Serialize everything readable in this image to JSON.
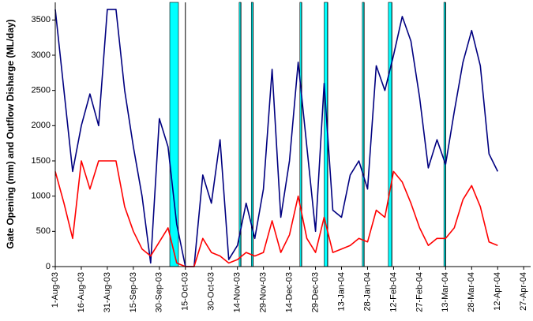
{
  "chart_data": {
    "type": "line",
    "ylabel": "Gate Opening (mm) and Outflow Disharge (ML/day)",
    "x": [
      "2003-08-01",
      "2003-08-06",
      "2003-08-11",
      "2003-08-16",
      "2003-08-21",
      "2003-08-26",
      "2003-08-31",
      "2003-09-05",
      "2003-09-10",
      "2003-09-15",
      "2003-09-20",
      "2003-09-25",
      "2003-09-30",
      "2003-10-05",
      "2003-10-10",
      "2003-10-15",
      "2003-10-20",
      "2003-10-25",
      "2003-10-30",
      "2003-11-04",
      "2003-11-09",
      "2003-11-14",
      "2003-11-19",
      "2003-11-24",
      "2003-11-29",
      "2003-12-04",
      "2003-12-09",
      "2003-12-14",
      "2003-12-19",
      "2003-12-24",
      "2003-12-29",
      "2004-01-03",
      "2004-01-08",
      "2004-01-13",
      "2004-01-18",
      "2004-01-23",
      "2004-01-28",
      "2004-02-02",
      "2004-02-07",
      "2004-02-12",
      "2004-02-17",
      "2004-02-22",
      "2004-02-27",
      "2004-03-03",
      "2004-03-08",
      "2004-03-13",
      "2004-03-18",
      "2004-03-23",
      "2004-03-28",
      "2004-04-02",
      "2004-04-07",
      "2004-04-12"
    ],
    "series": [
      {
        "color": "#000080",
        "values": [
          3650,
          2500,
          1350,
          2000,
          2450,
          2000,
          3650,
          3650,
          2500,
          1700,
          1000,
          50,
          2100,
          1700,
          600,
          0,
          0,
          1300,
          900,
          1800,
          100,
          300,
          900,
          400,
          1100,
          2800,
          700,
          1500,
          2900,
          1700,
          500,
          2600,
          800,
          700,
          1300,
          1500,
          1100,
          2850,
          2500,
          3000,
          3550,
          3200,
          2400,
          1400,
          1800,
          1450,
          2200,
          2900,
          3350,
          2850,
          1600,
          1350
        ]
      },
      {
        "color": "#ff0000",
        "values": [
          1350,
          900,
          400,
          1500,
          1100,
          1500,
          1500,
          1500,
          850,
          500,
          250,
          150,
          350,
          550,
          50,
          0,
          0,
          400,
          200,
          150,
          50,
          100,
          200,
          150,
          200,
          650,
          200,
          450,
          1000,
          400,
          200,
          700,
          200,
          250,
          300,
          400,
          350,
          800,
          700,
          1350,
          1200,
          900,
          550,
          300,
          400,
          400,
          550,
          950,
          1150,
          850,
          350,
          300
        ]
      }
    ],
    "gate_openings": [
      {
        "start": "2003-10-06",
        "end": "2003-10-11"
      },
      {
        "start": "2003-11-15",
        "end": "2003-11-16"
      },
      {
        "start": "2003-11-22",
        "end": "2003-11-23"
      },
      {
        "start": "2003-12-20",
        "end": "2003-12-21"
      },
      {
        "start": "2004-01-03",
        "end": "2004-01-05"
      },
      {
        "start": "2004-01-25",
        "end": "2004-01-26"
      },
      {
        "start": "2004-02-09",
        "end": "2004-02-11"
      },
      {
        "start": "2004-03-12",
        "end": "2004-03-13"
      }
    ],
    "band_color": "#00ffff",
    "closures": [
      "2003-10-15",
      "2003-11-16",
      "2003-11-23",
      "2003-12-21",
      "2004-01-05",
      "2004-01-26",
      "2004-02-11",
      "2004-03-13"
    ],
    "xlim": [
      "2003-08-01",
      "2004-05-01"
    ],
    "xticks": [
      {
        "value": "2003-08-01",
        "label": "1-Aug-03"
      },
      {
        "value": "2003-08-16",
        "label": "16-Aug-03"
      },
      {
        "value": "2003-08-31",
        "label": "31-Aug-03"
      },
      {
        "value": "2003-09-15",
        "label": "15-Sep-03"
      },
      {
        "value": "2003-09-30",
        "label": "30-Sep-03"
      },
      {
        "value": "2003-10-15",
        "label": "15-Oct-03"
      },
      {
        "value": "2003-10-30",
        "label": "30-Oct-03"
      },
      {
        "value": "2003-11-14",
        "label": "14-Nov-03"
      },
      {
        "value": "2003-11-29",
        "label": "29-Nov-03"
      },
      {
        "value": "2003-12-14",
        "label": "14-Dec-03"
      },
      {
        "value": "2003-12-29",
        "label": "29-Dec-03"
      },
      {
        "value": "2004-01-13",
        "label": "13-Jan-04"
      },
      {
        "value": "2004-01-28",
        "label": "28-Jan-04"
      },
      {
        "value": "2004-02-12",
        "label": "12-Feb-04"
      },
      {
        "value": "2004-02-27",
        "label": "27-Feb-04"
      },
      {
        "value": "2004-03-13",
        "label": "13-Mar-04"
      },
      {
        "value": "2004-03-28",
        "label": "28-Mar-04"
      },
      {
        "value": "2004-04-12",
        "label": "12-Apr-04"
      },
      {
        "value": "2004-04-27",
        "label": "27-Apr-04"
      }
    ],
    "ylim": [
      0,
      3750
    ],
    "yticks": [
      0,
      500,
      1000,
      1500,
      2000,
      2500,
      3000,
      3500
    ],
    "grid": false
  }
}
